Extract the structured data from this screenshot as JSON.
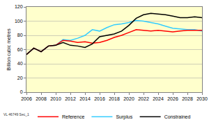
{
  "chart_data": {
    "type": "line",
    "y_label": "Billion cubic metres",
    "annotations": [
      "VL 46749 Sec_1"
    ],
    "x": [
      2006,
      2007,
      2008,
      2009,
      2010,
      2011,
      2012,
      2013,
      2014,
      2015,
      2016,
      2017,
      2018,
      2019,
      2020,
      2021,
      2022,
      2023,
      2024,
      2025,
      2026,
      2027,
      2028,
      2029,
      2030
    ],
    "series": [
      {
        "name": "Reference",
        "color": "#ff0000",
        "values": [
          53,
          62,
          57,
          65,
          66,
          73,
          72,
          70,
          71,
          69,
          70,
          73,
          77,
          80,
          84,
          88,
          87,
          86,
          87,
          86,
          85,
          86,
          87,
          87,
          87
        ]
      },
      {
        "name": "Surplus",
        "color": "#33ccff",
        "values": [
          53,
          62,
          57,
          65,
          66,
          74,
          73,
          76,
          80,
          88,
          86,
          91,
          95,
          96,
          98,
          101,
          100,
          98,
          96,
          93,
          90,
          89,
          88,
          88,
          86
        ]
      },
      {
        "name": "Constrained",
        "color": "#000000",
        "values": [
          53,
          62,
          57,
          65,
          66,
          70,
          66,
          65,
          63,
          68,
          78,
          80,
          82,
          86,
          94,
          104,
          109,
          111,
          110,
          109,
          107,
          105,
          105,
          106,
          105
        ]
      }
    ],
    "xlim": [
      2006,
      2030
    ],
    "xticks": [
      2006,
      2008,
      2010,
      2012,
      2014,
      2016,
      2018,
      2020,
      2022,
      2024,
      2026,
      2028,
      2030
    ],
    "ylim": [
      0,
      120
    ],
    "yticks": [
      0,
      20,
      40,
      60,
      80,
      100,
      120
    ],
    "grid": true,
    "legend": "bottom"
  }
}
